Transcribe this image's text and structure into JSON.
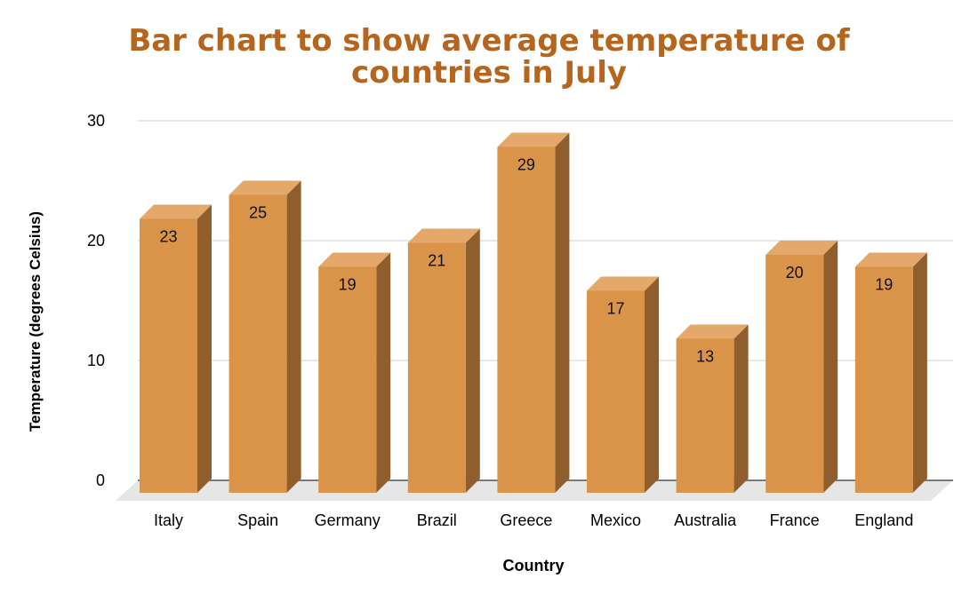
{
  "colors": {
    "title": "#b5651d",
    "bar_front": "#d9944a",
    "bar_side": "#8f5e2c",
    "bar_top": "#e3a86a",
    "grid": "#d9d9d9",
    "floor": "#e6e6e6"
  },
  "chart_data": {
    "type": "bar",
    "title_line1": "Bar chart to show average temperature of",
    "title_line2": "countries in July",
    "xlabel": "Country",
    "ylabel": "Temperature (degrees Celsius)",
    "categories": [
      "Italy",
      "Spain",
      "Germany",
      "Brazil",
      "Greece",
      "Mexico",
      "Australia",
      "France",
      "England"
    ],
    "values": [
      23,
      25,
      19,
      21,
      29,
      17,
      13,
      20,
      19
    ],
    "ylim": [
      0,
      30
    ],
    "yticks": [
      0,
      10,
      20,
      30
    ],
    "grid": true,
    "legend": "none",
    "bar_style": "3d"
  }
}
